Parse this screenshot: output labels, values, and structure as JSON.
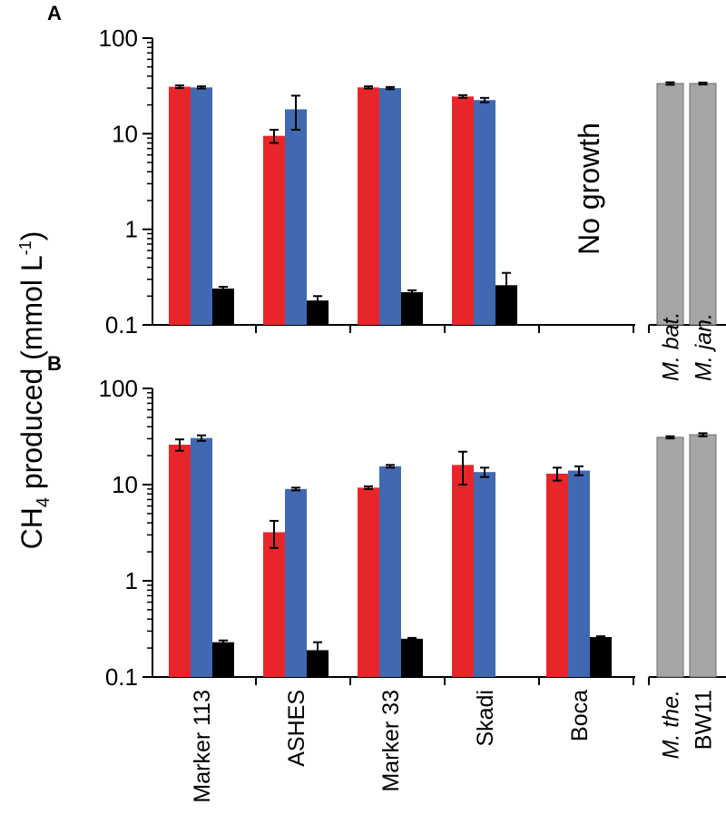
{
  "chart_data": {
    "type": "bar",
    "yscale": "log",
    "ylabel": {
      "main": "CH",
      "sub": "4",
      "mid": " produced (mmol L",
      "sup": "-1",
      "end": ")"
    },
    "yticks": [
      "0.1",
      "1",
      "10",
      "100"
    ],
    "ylim": [
      0.1,
      100
    ],
    "categories": [
      "Marker 113",
      "ASHES",
      "Marker 33",
      "Skadi",
      "Boca"
    ],
    "series_colors": [
      "#e8262a",
      "#4169b1",
      "#000000"
    ],
    "reference_color": "#a6a6a6",
    "panels": [
      {
        "letter": "A",
        "note": "No growth",
        "groups": [
          {
            "values": [
              31,
              30.5,
              0.24
            ],
            "errors": [
              1,
              0.8,
              0.01
            ]
          },
          {
            "values": [
              9.5,
              18,
              0.18
            ],
            "errors": [
              1.5,
              7,
              0.02
            ]
          },
          {
            "values": [
              30.5,
              30,
              0.22
            ],
            "errors": [
              0.8,
              0.8,
              0.01
            ]
          },
          {
            "values": [
              24.5,
              22.5,
              0.26
            ],
            "errors": [
              0.8,
              1.2,
              0.09
            ]
          },
          null
        ],
        "reference": [
          {
            "label": "M. bat.",
            "italic": true,
            "value": 33.5,
            "error": 1
          },
          {
            "label": "M. jan.",
            "italic": true,
            "value": 33.5,
            "error": 0.8
          }
        ]
      },
      {
        "letter": "B",
        "note": "",
        "groups": [
          {
            "values": [
              26,
              30.5,
              0.23
            ],
            "errors": [
              3.5,
              2,
              0.01
            ]
          },
          {
            "values": [
              3.2,
              9,
              0.19
            ],
            "errors": [
              1,
              0.3,
              0.04
            ]
          },
          {
            "values": [
              9.3,
              15.5,
              0.25
            ],
            "errors": [
              0.3,
              0.5,
              0.005
            ]
          },
          {
            "values": [
              16,
              13.5,
              null
            ],
            "errors": [
              6,
              1.5,
              null
            ]
          },
          {
            "values": [
              13,
              14,
              0.26
            ],
            "errors": [
              2,
              1.5,
              0.005
            ]
          }
        ],
        "reference": [
          {
            "label": "M. the.",
            "italic": true,
            "value": 31,
            "error": 0.8
          },
          {
            "label": "BW11",
            "italic": false,
            "value": 33,
            "error": 1.2
          }
        ]
      }
    ]
  }
}
